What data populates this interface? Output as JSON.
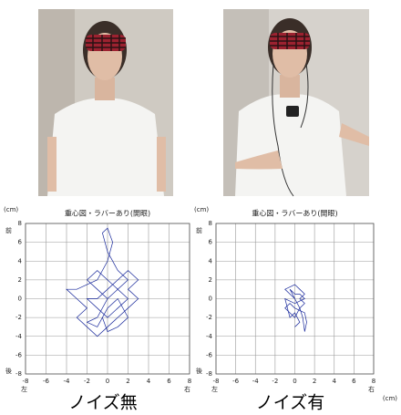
{
  "chart_data": [
    {
      "type": "line",
      "title": "重心図・ラバーあり(開眼)",
      "caption": "ノイズ無",
      "y_unit": "(cm)",
      "front_label": "前",
      "back_label": "後",
      "left_label": "左",
      "right_label": "右",
      "xlim": [
        -8,
        8
      ],
      "ylim": [
        -8,
        8
      ],
      "xticks": [
        -8,
        -6,
        -4,
        -2,
        0,
        2,
        4,
        6,
        8
      ],
      "yticks": [
        8,
        6,
        4,
        2,
        0,
        -2,
        -4,
        -6,
        -8
      ],
      "grid": true,
      "color": "#1a2a9c",
      "x": [
        0,
        -1,
        -2,
        -1,
        0,
        1,
        2,
        1,
        0,
        -0.5,
        0,
        0.5,
        0,
        -1,
        -3,
        -4,
        -3,
        -2,
        -3,
        -2,
        -1,
        0,
        1,
        2,
        3,
        2,
        3,
        2,
        1,
        0,
        -1,
        -2,
        -1,
        0,
        1,
        2,
        1,
        0,
        -1,
        -2,
        -1,
        0,
        1,
        2,
        1,
        0,
        -0.5
      ],
      "values": [
        0,
        1,
        2,
        3,
        2,
        1,
        2,
        3,
        5,
        7,
        7.5,
        6,
        4,
        2,
        1,
        1,
        0,
        -1,
        -2,
        -3,
        -4,
        -3,
        -2,
        -1,
        0,
        1,
        2,
        3,
        2,
        1,
        0,
        0,
        -1,
        -2,
        -1,
        0,
        1,
        0,
        -2,
        -2.5,
        -3,
        -1,
        0,
        -2,
        -3,
        -3.5,
        -2
      ]
    },
    {
      "type": "line",
      "title": "重心図・ラバーあり(開眼)",
      "caption": "ノイズ有",
      "y_unit": "(cm)",
      "x_unit": "(cm)",
      "front_label": "前",
      "back_label": "後",
      "left_label": "左",
      "right_label": "右",
      "xlim": [
        -8,
        8
      ],
      "ylim": [
        -8,
        8
      ],
      "xticks": [
        -8,
        -6,
        -4,
        -2,
        0,
        2,
        4,
        6,
        8
      ],
      "yticks": [
        8,
        6,
        4,
        2,
        0,
        -2,
        -4,
        -6,
        -8
      ],
      "grid": true,
      "color": "#1a2a9c",
      "x": [
        0,
        -0.5,
        -1,
        0,
        0.5,
        1,
        0.5,
        1,
        0.5,
        0,
        -0.5,
        -1,
        -0.5,
        0,
        1,
        1.2,
        1,
        0.8,
        0.5,
        0,
        -0.5,
        0,
        0.5,
        1,
        0,
        -1,
        -0.5,
        0,
        0.5,
        0
      ],
      "values": [
        0,
        0.5,
        1,
        1.5,
        1,
        0.5,
        0,
        -0.5,
        -1,
        -2,
        -1.5,
        -1,
        -0.5,
        -1,
        -1.5,
        -2.5,
        -3.5,
        -2,
        -1,
        0,
        1,
        0.5,
        0.5,
        0,
        -0.5,
        0,
        -2,
        -1.5,
        -2.5,
        -3
      ]
    }
  ]
}
